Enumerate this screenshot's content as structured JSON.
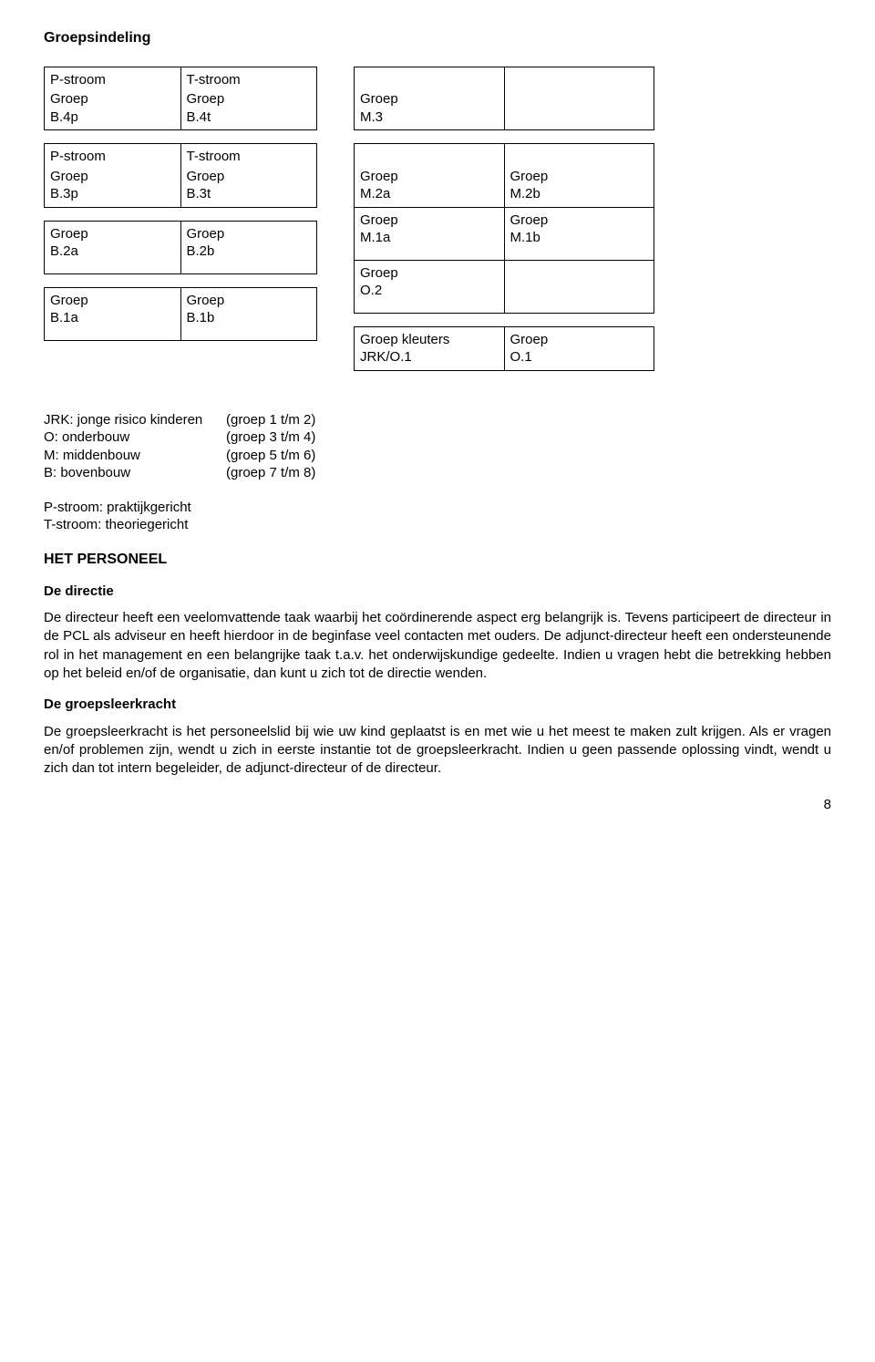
{
  "title": "Groepsindeling",
  "word_groep": "Groep",
  "left_tables": [
    {
      "rows": [
        {
          "c1_head": "P-stroom",
          "c1_lines": [
            "Groep",
            "B.4p"
          ],
          "c2_head": "T-stroom",
          "c2_lines": [
            "Groep",
            "B.4t"
          ]
        }
      ]
    },
    {
      "rows": [
        {
          "c1_head": "P-stroom",
          "c1_lines": [
            "Groep",
            "B.3p"
          ],
          "c2_head": "T-stroom",
          "c2_lines": [
            "Groep",
            "B.3t"
          ]
        }
      ]
    },
    {
      "rows": [
        {
          "c1_head": "",
          "c1_lines": [
            "Groep",
            "B.2a"
          ],
          "c2_head": "",
          "c2_lines": [
            "Groep",
            "B.2b"
          ]
        }
      ]
    },
    {
      "rows": [
        {
          "c1_head": "",
          "c1_lines": [
            "Groep",
            "B.1a"
          ],
          "c2_head": "",
          "c2_lines": [
            "Groep",
            "B.1b"
          ]
        }
      ]
    }
  ],
  "right_tables": [
    {
      "rows": [
        {
          "c1_lines": [
            "Groep",
            "M.3"
          ],
          "c2_lines": [
            ""
          ]
        }
      ]
    },
    {
      "rows": [
        {
          "c1_lines": [
            "Groep",
            "M.2a"
          ],
          "c2_lines": [
            "Groep",
            "M.2b"
          ]
        },
        {
          "c1_lines": [
            "Groep",
            "M.1a"
          ],
          "c2_lines": [
            "Groep",
            "M.1b"
          ]
        },
        {
          "c1_lines": [
            "Groep",
            "O.2"
          ],
          "c2_lines": [
            ""
          ]
        }
      ]
    },
    {
      "rows": [
        {
          "c1_lines": [
            "Groep kleuters",
            "JRK/O.1"
          ],
          "c2_lines": [
            "Groep",
            "O.1"
          ]
        }
      ]
    }
  ],
  "legend": [
    {
      "key": "JRK: jonge risico kinderen",
      "val": "(groep 1 t/m 2)"
    },
    {
      "key": "O: onderbouw",
      "val": "(groep 3 t/m 4)"
    },
    {
      "key": "M: middenbouw",
      "val": "(groep 5 t/m 6)"
    },
    {
      "key": "B: bovenbouw",
      "val": "(groep 7 t/m 8)"
    }
  ],
  "stream_lines": [
    "P-stroom: praktijkgericht",
    "T-stroom: theoriegericht"
  ],
  "section_personeel": "HET PERSONEEL",
  "sub_directie": "De directie",
  "para_directie": "De directeur heeft een veelomvattende taak waarbij het coördinerende aspect erg belangrijk is. Tevens participeert de directeur in de PCL als adviseur en heeft hierdoor in de beginfase veel contacten met ouders. De adjunct-directeur heeft een ondersteunende rol in het management en een belangrijke taak t.a.v. het onderwijskundige gedeelte. Indien u vragen hebt die betrekking hebben op het beleid en/of de organisatie, dan kunt u zich tot de directie wenden.",
  "sub_groepsleerkracht": "De groepsleerkracht",
  "para_groepsleerkracht": "De groepsleerkracht is het personeelslid bij wie uw kind geplaatst is en met wie u het meest te maken zult krijgen. Als er vragen en/of problemen zijn, wendt u zich in eerste instantie tot de groepsleerkracht. Indien u geen passende oplossing vindt, wendt u zich dan tot intern begeleider, de adjunct-directeur of de directeur.",
  "page_number": "8"
}
